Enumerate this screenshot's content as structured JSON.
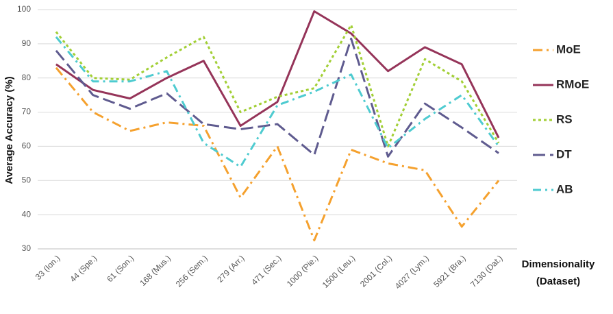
{
  "chart_data": {
    "type": "line",
    "y_label": "Average Accuracy (%)",
    "x_label": [
      "Dimensionality",
      "(Dataset)"
    ],
    "categories": [
      "33 (Ion.)",
      "44 (Spe.)",
      "61 (Son.)",
      "168 (Mus.)",
      "256 (Sem.)",
      "279 (Arr.)",
      "471 (Sec.)",
      "1000 (Pie.)",
      "1500 (Leu.)",
      "2001 (Col.)",
      "4027 (Lym.)",
      "5921 (Bra.)",
      "7130 (Dat.)"
    ],
    "series": [
      {
        "name": "MoE",
        "color": "#f5a12e",
        "values": [
          83,
          70,
          64.5,
          67,
          66,
          45,
          60,
          32.5,
          59,
          55,
          53,
          36.5,
          50
        ]
      },
      {
        "name": "RMoE",
        "color": "#953459",
        "values": [
          84,
          76.5,
          74,
          80,
          85,
          66,
          73,
          99.5,
          93,
          82,
          89,
          84,
          62.5
        ]
      },
      {
        "name": "RS",
        "color": "#a2cf35",
        "values": [
          93.5,
          80,
          79.5,
          86,
          92,
          70,
          74.5,
          77,
          95.5,
          60,
          85.5,
          79,
          61
        ]
      },
      {
        "name": "DT",
        "color": "#5f5b8f",
        "values": [
          88,
          75,
          71,
          75.5,
          66.5,
          65,
          66.5,
          57.5,
          91.5,
          57,
          72.5,
          65.5,
          58
        ]
      },
      {
        "name": "AB",
        "color": "#4ecbd0",
        "values": [
          92,
          79,
          79,
          82,
          61,
          54,
          72,
          76,
          81,
          59.5,
          68,
          75,
          60
        ]
      }
    ],
    "ylim": [
      30,
      100
    ],
    "yticks": [
      30,
      40,
      50,
      60,
      70,
      80,
      90,
      100
    ],
    "grid": true
  }
}
